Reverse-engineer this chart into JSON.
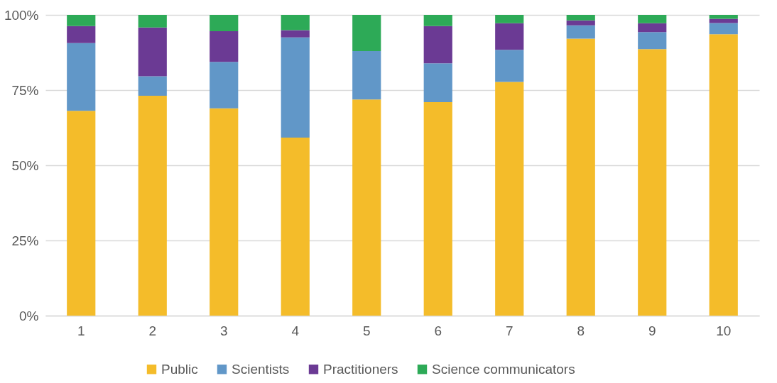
{
  "chart_data": {
    "type": "bar",
    "stacked": true,
    "categories": [
      "1",
      "2",
      "3",
      "4",
      "5",
      "6",
      "7",
      "8",
      "9",
      "10"
    ],
    "series": [
      {
        "name": "Public",
        "color": "#f4bc2a",
        "values": [
          68.1,
          73.1,
          68.9,
          59.2,
          71.9,
          71.0,
          77.7,
          92.1,
          88.6,
          93.6
        ]
      },
      {
        "name": "Scientists",
        "color": "#6197c8",
        "values": [
          22.5,
          6.5,
          15.5,
          33.3,
          16.1,
          12.9,
          10.7,
          4.4,
          5.7,
          3.7
        ]
      },
      {
        "name": "Practitioners",
        "color": "#6b3a94",
        "values": [
          5.7,
          16.2,
          10.2,
          2.4,
          0,
          12.4,
          8.8,
          1.7,
          2.9,
          1.4
        ]
      },
      {
        "name": "Science communicators",
        "color": "#2daa57",
        "values": [
          3.7,
          4.2,
          5.4,
          5.1,
          12.0,
          3.7,
          2.8,
          1.8,
          2.8,
          1.3
        ]
      }
    ],
    "ylim": [
      0,
      100
    ],
    "yticks": [
      {
        "value": 0,
        "label": "0%"
      },
      {
        "value": 25,
        "label": "25%"
      },
      {
        "value": 50,
        "label": "50%"
      },
      {
        "value": 75,
        "label": "75%"
      },
      {
        "value": 100,
        "label": "100%"
      }
    ],
    "grid": "y",
    "legend": "bottom"
  }
}
